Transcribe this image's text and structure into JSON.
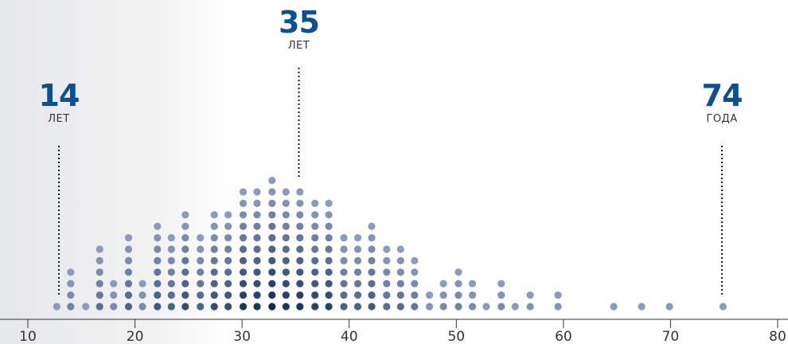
{
  "chart_data": {
    "type": "dot_histogram",
    "xlim": [
      10,
      80
    ],
    "x_ticks": [
      "10",
      "20",
      "30",
      "40",
      "50",
      "60",
      "70",
      "80"
    ],
    "dot_columns": [
      {
        "x": 12.7,
        "count": 1
      },
      {
        "x": 14.0,
        "count": 4
      },
      {
        "x": 15.4,
        "count": 1
      },
      {
        "x": 16.7,
        "count": 6
      },
      {
        "x": 18.0,
        "count": 3
      },
      {
        "x": 19.4,
        "count": 7
      },
      {
        "x": 20.7,
        "count": 3
      },
      {
        "x": 22.1,
        "count": 8
      },
      {
        "x": 23.4,
        "count": 7
      },
      {
        "x": 24.7,
        "count": 9
      },
      {
        "x": 26.1,
        "count": 7
      },
      {
        "x": 27.4,
        "count": 9
      },
      {
        "x": 28.7,
        "count": 9
      },
      {
        "x": 30.1,
        "count": 11
      },
      {
        "x": 31.4,
        "count": 11
      },
      {
        "x": 32.8,
        "count": 12
      },
      {
        "x": 34.1,
        "count": 11
      },
      {
        "x": 35.4,
        "count": 11
      },
      {
        "x": 36.8,
        "count": 10
      },
      {
        "x": 38.1,
        "count": 10
      },
      {
        "x": 39.5,
        "count": 7
      },
      {
        "x": 40.8,
        "count": 7
      },
      {
        "x": 42.1,
        "count": 8
      },
      {
        "x": 43.5,
        "count": 6
      },
      {
        "x": 44.8,
        "count": 6
      },
      {
        "x": 46.1,
        "count": 5
      },
      {
        "x": 47.5,
        "count": 2
      },
      {
        "x": 48.8,
        "count": 3
      },
      {
        "x": 50.2,
        "count": 4
      },
      {
        "x": 51.5,
        "count": 3
      },
      {
        "x": 52.8,
        "count": 1
      },
      {
        "x": 54.2,
        "count": 3
      },
      {
        "x": 55.5,
        "count": 1
      },
      {
        "x": 56.9,
        "count": 2
      },
      {
        "x": 59.5,
        "count": 2
      },
      {
        "x": 64.7,
        "count": 1
      },
      {
        "x": 67.3,
        "count": 1
      },
      {
        "x": 69.9,
        "count": 1
      },
      {
        "x": 74.9,
        "count": 1
      }
    ],
    "annotations": [
      {
        "value": "14",
        "unit": "ЛЕТ",
        "x": 12.9
      },
      {
        "value": "35",
        "unit": "ЛЕТ",
        "x": 35.3
      },
      {
        "value": "74",
        "unit": "ГОДА",
        "x": 74.8
      }
    ],
    "colors": {
      "dot_light": "#8c9bbb",
      "dot_dark": "#0f2a55",
      "annotation_value": "#0b4f95",
      "axis": "#333333"
    },
    "grid": false
  }
}
